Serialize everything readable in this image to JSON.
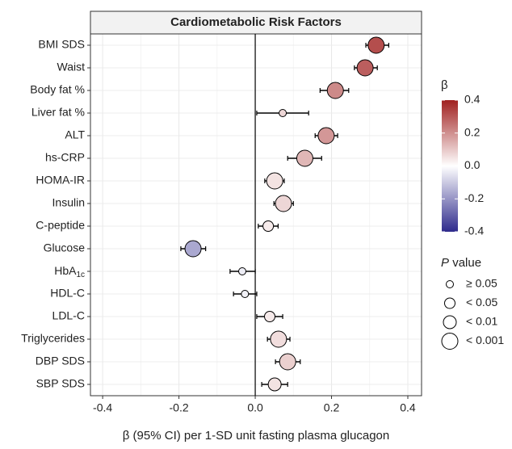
{
  "chart_data": {
    "type": "forest",
    "title": "Cardiometabolic Risk Factors",
    "xlabel": "β (95% CI) per 1-SD unit fasting plasma glucagon",
    "categories": [
      "BMI SDS",
      "Waist",
      "Body fat %",
      "Liver fat %",
      "ALT",
      "hs-CRP",
      "HOMA-IR",
      "Insulin",
      "C-peptide",
      "Glucose",
      {
        "text": "HbA",
        "subscript": "1c"
      },
      "HDL-C",
      "LDL-C",
      "Triglycerides",
      "DBP SDS",
      "SBP SDS"
    ],
    "values": [
      0.317,
      0.288,
      0.21,
      0.072,
      0.186,
      0.13,
      0.051,
      0.074,
      0.034,
      -0.163,
      -0.034,
      -0.027,
      0.038,
      0.061,
      0.085,
      0.051
    ],
    "ci_low": [
      0.29,
      0.26,
      0.17,
      0.004,
      0.157,
      0.085,
      0.025,
      0.049,
      0.008,
      -0.195,
      -0.066,
      -0.057,
      0.004,
      0.032,
      0.053,
      0.017
    ],
    "ci_high": [
      0.35,
      0.32,
      0.245,
      0.14,
      0.216,
      0.174,
      0.076,
      0.1,
      0.06,
      -0.13,
      0.0,
      0.004,
      0.072,
      0.091,
      0.118,
      0.085
    ],
    "p_class": [
      3,
      3,
      3,
      0,
      3,
      3,
      3,
      3,
      1,
      3,
      0,
      0,
      1,
      3,
      3,
      2
    ],
    "xlim": [
      -0.432,
      0.436
    ],
    "xticks": [
      -0.4,
      -0.2,
      {
        "value": 0,
        "label": "0.0"
      },
      0.2,
      0.4
    ],
    "grid": true,
    "colorbar": {
      "title": "β",
      "lim": [
        -0.4,
        0.4
      ],
      "low": "#2e2a8c",
      "mid": "#ffffff",
      "high": "#a0201f",
      "ticks": [
        0.4,
        0.2,
        {
          "value": 0,
          "label": "0.0"
        },
        -0.2,
        -0.4
      ]
    },
    "size_legend": {
      "title_italic": "P",
      "title": "value",
      "labels": [
        "≥ 0.05",
        "< 0.05",
        "< 0.01",
        "< 0.001"
      ]
    }
  }
}
